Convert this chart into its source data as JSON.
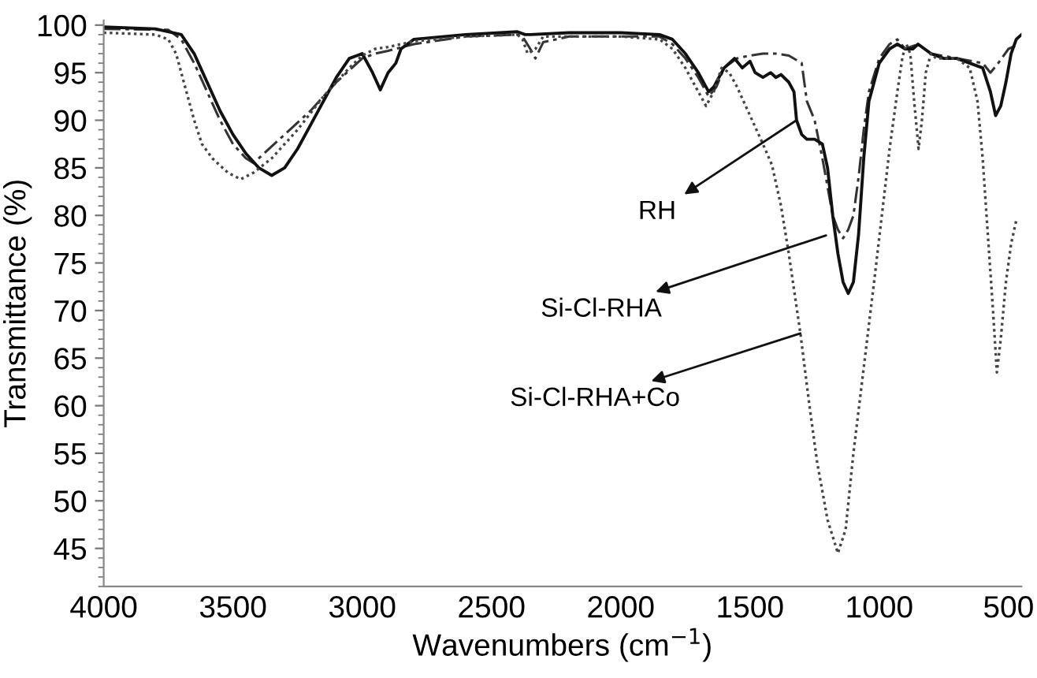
{
  "chart_data": {
    "type": "line",
    "xlabel": "Wavenumbers (cm$^{−1}$)",
    "ylabel": "Transmittance (%)",
    "xlim": [
      4000,
      450
    ],
    "xticks": [
      4000,
      3500,
      3000,
      2500,
      2000,
      1500,
      1000,
      500
    ],
    "ylim": [
      41,
      100.5
    ],
    "yticks": [
      45,
      50,
      55,
      60,
      65,
      70,
      75,
      80,
      85,
      90,
      95,
      100
    ],
    "grid": false,
    "legend": false,
    "marker": "none",
    "series": [
      {
        "color": "#333333",
        "line_style": "dashed",
        "x": [
          4000,
          3750,
          3700,
          3650,
          3600,
          3550,
          3500,
          3450,
          3420,
          3380,
          3300,
          3200,
          3100,
          3000,
          2950,
          2900,
          2800,
          2600,
          2400,
          2380,
          2350,
          2330,
          2300,
          2200,
          2000,
          1850,
          1800,
          1750,
          1700,
          1660,
          1630,
          1600,
          1550,
          1500,
          1450,
          1400,
          1350,
          1300,
          1280,
          1250,
          1220,
          1200,
          1180,
          1160,
          1140,
          1120,
          1100,
          1080,
          1060,
          1040,
          1000,
          960,
          930,
          900,
          850,
          800,
          700,
          600,
          570,
          540,
          500,
          460
        ],
        "values": [
          99.6,
          99.5,
          98.5,
          96,
          93,
          90,
          87.5,
          86,
          85.5,
          86.5,
          88.5,
          91,
          94,
          96.5,
          97,
          97.3,
          98,
          98.8,
          99,
          98.8,
          97.5,
          96.5,
          98.2,
          98.8,
          98.8,
          98.8,
          98,
          96.5,
          94.5,
          92.5,
          93.5,
          95.5,
          96.5,
          96.8,
          97,
          97,
          96.8,
          96,
          92,
          90,
          86,
          83,
          80,
          78.5,
          77.6,
          78.5,
          80,
          84,
          89,
          93,
          96.5,
          98,
          98.5,
          97.5,
          98,
          97,
          96.5,
          96,
          95,
          96,
          97.5,
          98
        ]
      },
      {
        "color": "#111111",
        "line_style": "solid",
        "x": [
          4000,
          3800,
          3700,
          3650,
          3600,
          3550,
          3500,
          3450,
          3400,
          3350,
          3300,
          3250,
          3200,
          3150,
          3100,
          3050,
          3000,
          2960,
          2930,
          2900,
          2870,
          2850,
          2800,
          2600,
          2400,
          2370,
          2350,
          2200,
          2000,
          1850,
          1800,
          1750,
          1700,
          1660,
          1640,
          1600,
          1560,
          1530,
          1500,
          1480,
          1450,
          1420,
          1400,
          1380,
          1350,
          1330,
          1320,
          1300,
          1280,
          1250,
          1220,
          1200,
          1180,
          1160,
          1140,
          1120,
          1100,
          1080,
          1060,
          1040,
          1000,
          960,
          930,
          900,
          870,
          850,
          800,
          750,
          700,
          650,
          600,
          570,
          550,
          530,
          510,
          490,
          470,
          450
        ],
        "values": [
          99.8,
          99.6,
          99,
          97,
          94,
          91,
          88.5,
          86.5,
          85,
          84.2,
          85,
          87,
          89.5,
          92,
          94.5,
          96.5,
          97,
          95,
          93.2,
          95,
          96,
          97.5,
          98.5,
          99,
          99.3,
          99,
          99,
          99.2,
          99.2,
          99,
          98.5,
          97,
          95,
          93,
          93.5,
          95.5,
          96.5,
          95.5,
          96.2,
          95,
          94.5,
          95,
          94.5,
          94.8,
          94,
          93,
          90,
          88.5,
          88,
          88,
          87.5,
          85,
          80,
          76,
          73,
          71.8,
          73,
          78,
          86,
          92,
          96,
          97.5,
          98,
          97.5,
          97.5,
          98,
          97,
          96.5,
          96.5,
          96,
          95.5,
          93,
          90.5,
          91.5,
          94,
          97,
          98.5,
          99
        ]
      },
      {
        "color": "#444444",
        "line_style": "dotted",
        "x": [
          4000,
          3800,
          3750,
          3720,
          3700,
          3650,
          3620,
          3580,
          3520,
          3470,
          3420,
          3350,
          3250,
          3150,
          3050,
          3000,
          2950,
          2900,
          2800,
          2600,
          2400,
          2380,
          2360,
          2330,
          2300,
          2000,
          1850,
          1800,
          1750,
          1700,
          1670,
          1640,
          1610,
          1580,
          1550,
          1500,
          1450,
          1415,
          1380,
          1350,
          1305,
          1270,
          1240,
          1200,
          1160,
          1130,
          1100,
          1060,
          1020,
          990,
          960,
          930,
          910,
          895,
          880,
          865,
          848,
          835,
          820,
          800,
          780,
          700,
          650,
          620,
          600,
          580,
          560,
          545,
          530,
          510,
          490,
          470
        ],
        "values": [
          99.2,
          99,
          98.5,
          97,
          95,
          90,
          87.5,
          86,
          84.5,
          83.8,
          84.5,
          86,
          89,
          92.5,
          95.5,
          96.8,
          97.5,
          97.7,
          98.3,
          98.8,
          99,
          98.5,
          97,
          97.5,
          98.8,
          98.8,
          98.5,
          97.5,
          95.5,
          93,
          91.5,
          93,
          95.5,
          95,
          93.5,
          90.5,
          87.5,
          85.3,
          81,
          76,
          67.6,
          60,
          54,
          48,
          44.5,
          47,
          55,
          64,
          73,
          80,
          87,
          93,
          96.7,
          98,
          97,
          92,
          87,
          90,
          95,
          97,
          96.5,
          96.5,
          95.5,
          92,
          86,
          78,
          70,
          63.5,
          67,
          73,
          77,
          79.5
        ]
      }
    ],
    "annotations": [
      {
        "text": "RH",
        "x": 1320,
        "y": 90
      },
      {
        "text": "Si-Cl-RHA",
        "x": 1206,
        "y": 77.9
      },
      {
        "text": "Si-Cl-RHA+Co",
        "x": 1305,
        "y": 67.6
      }
    ]
  }
}
